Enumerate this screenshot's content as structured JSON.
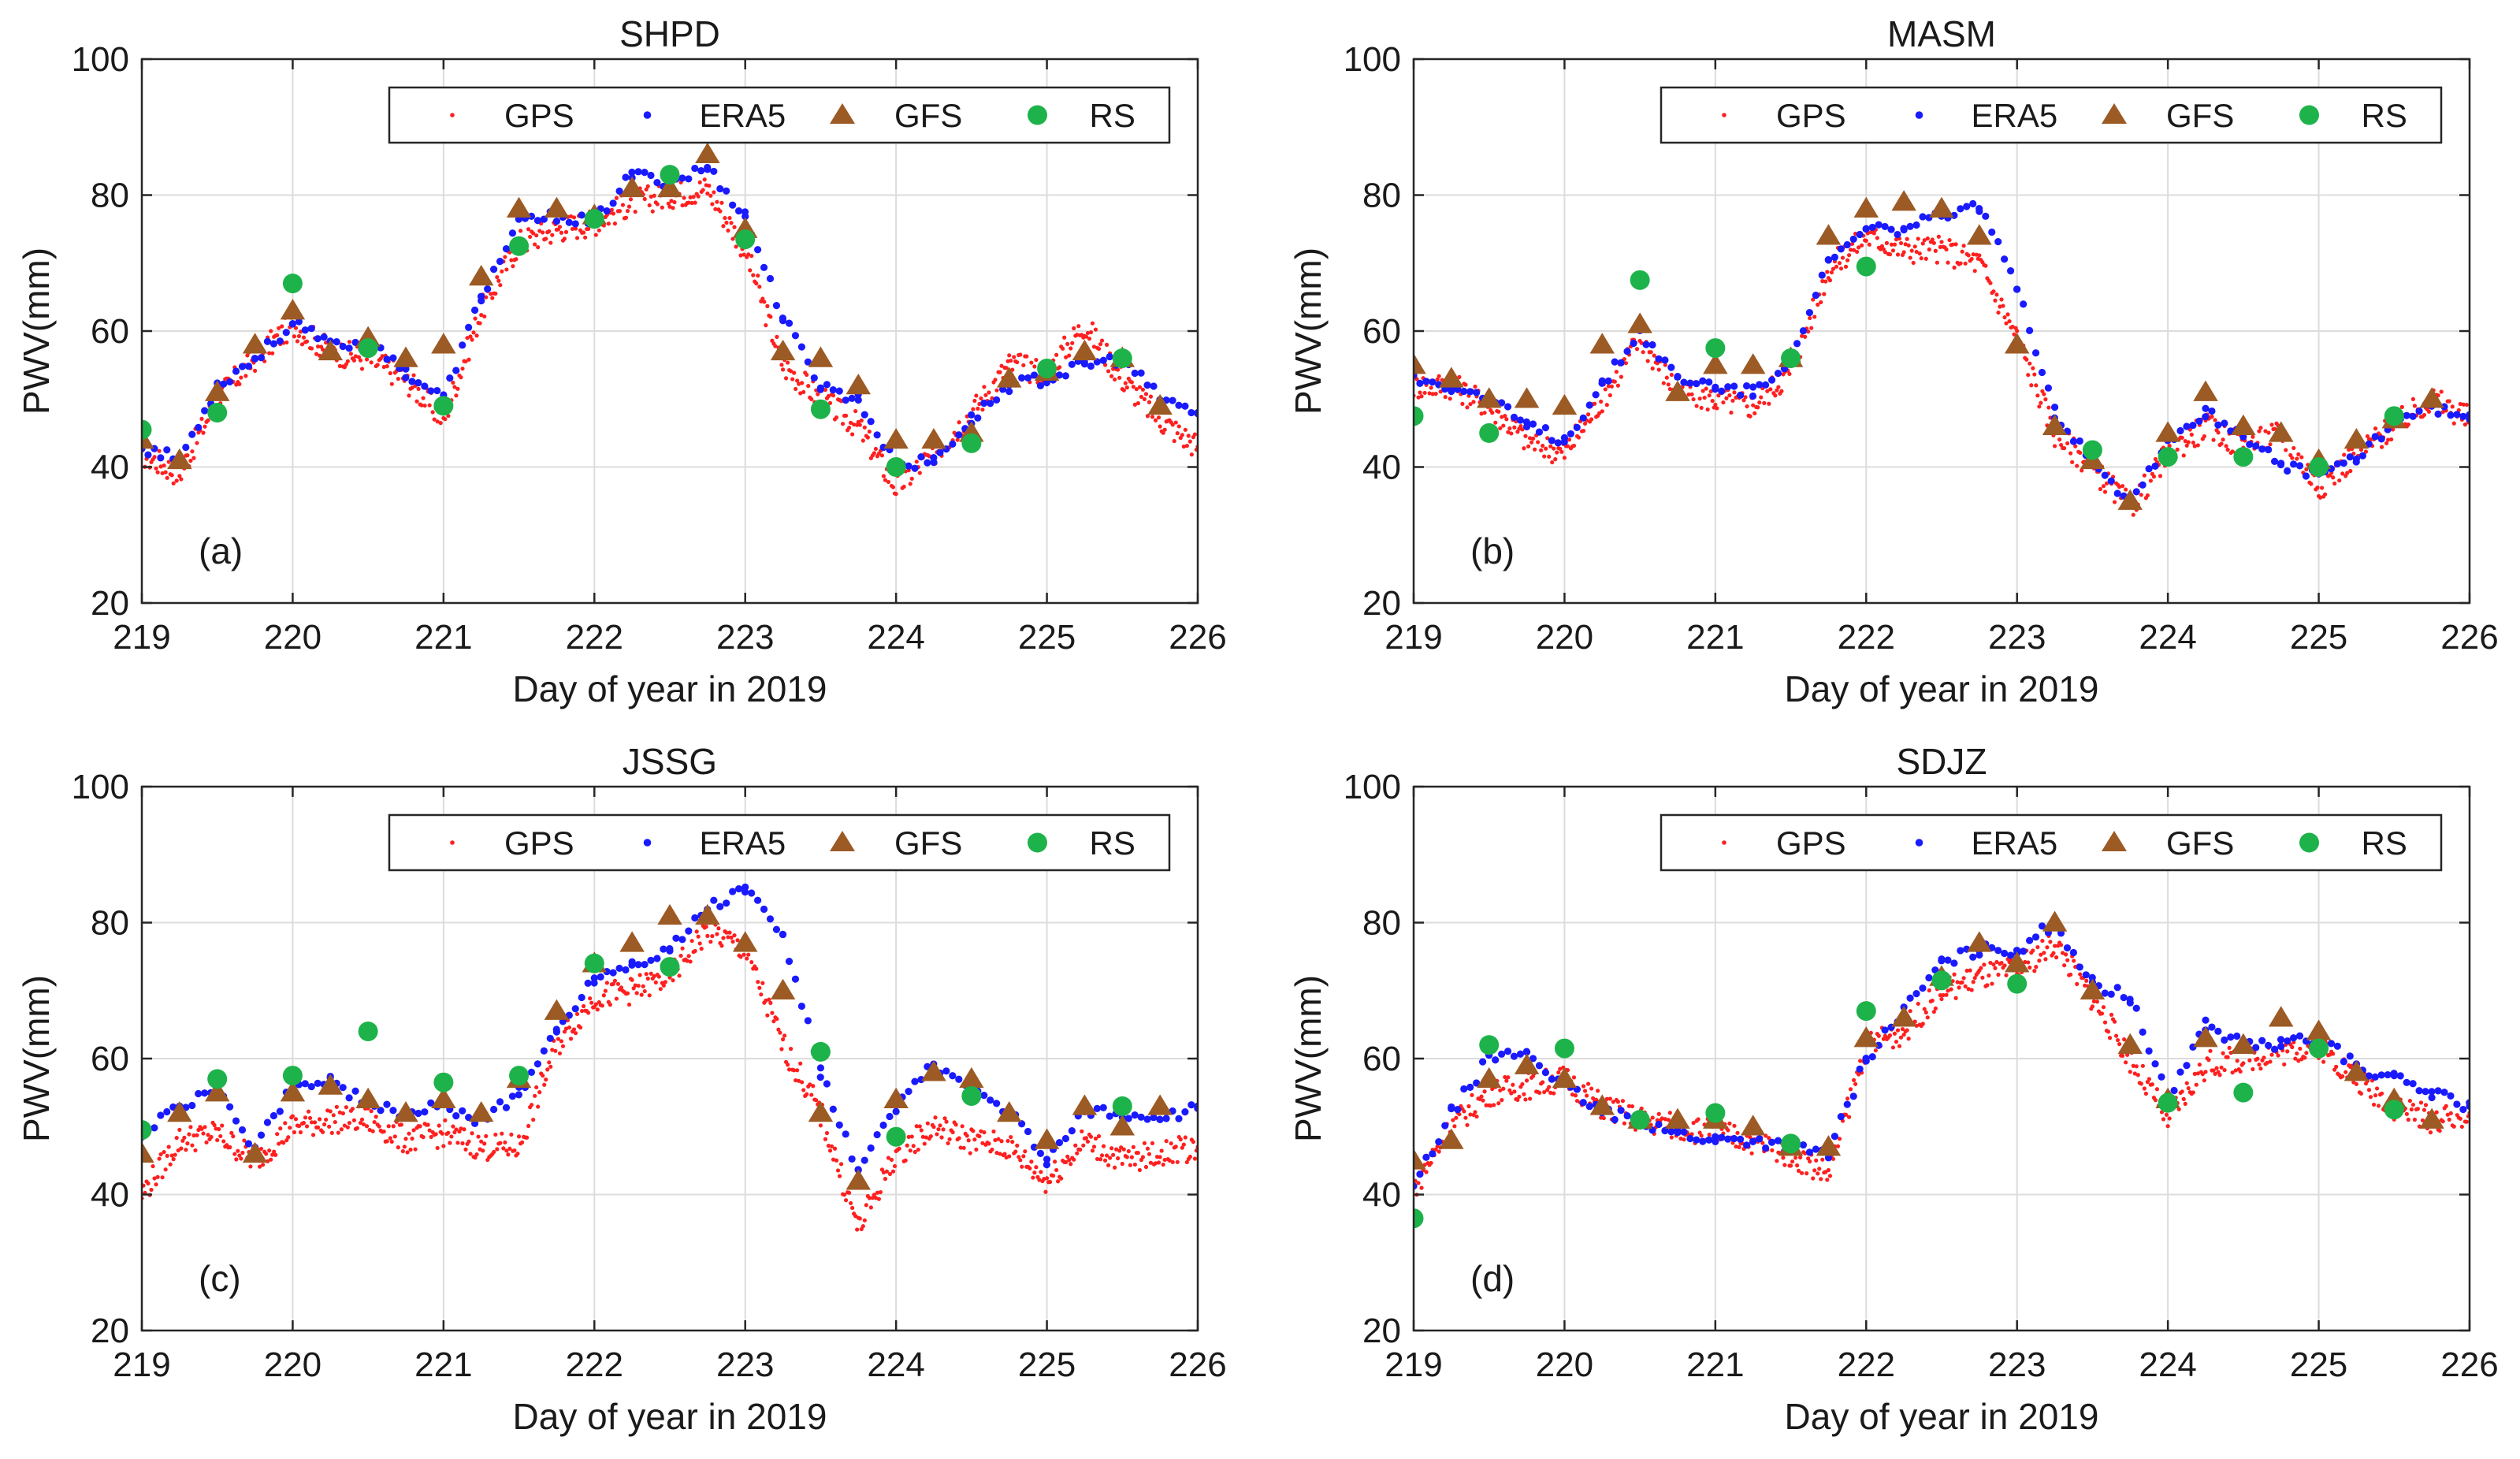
{
  "figure": {
    "shared_xlabel": "Day of year in 2019",
    "shared_ylabel": "PWV(mm)",
    "colors": {
      "GPS": "#ff1f1f",
      "ERA5": "#1a1aff",
      "GFS": "#9c5a24",
      "RS": "#1db34a"
    }
  },
  "chart_data": [
    {
      "type": "scatter",
      "title": "SHPD",
      "panel_label": "(a)",
      "xlabel": "Day of year in 2019",
      "ylabel": "PWV(mm)",
      "xlim": [
        219,
        226
      ],
      "ylim": [
        20,
        100
      ],
      "xticks": [
        219,
        220,
        221,
        222,
        223,
        224,
        225,
        226
      ],
      "yticks": [
        20,
        40,
        60,
        80,
        100
      ],
      "grid": true,
      "legend": {
        "placement": "top-right",
        "entries": [
          "GPS",
          "ERA5",
          "GFS",
          "RS"
        ]
      },
      "series": [
        {
          "name": "GPS",
          "marker": "small-dot",
          "x": [
            219.0,
            219.25,
            219.5,
            219.75,
            220.0,
            220.25,
            220.5,
            220.75,
            221.0,
            221.25,
            221.5,
            221.75,
            222.0,
            222.25,
            222.5,
            222.75,
            223.0,
            223.25,
            223.5,
            223.75,
            224.0,
            224.25,
            224.5,
            224.75,
            225.0,
            225.25,
            225.5,
            225.75,
            226.0
          ],
          "y": [
            42,
            39,
            50,
            56,
            61,
            57,
            56,
            53,
            47,
            63,
            73,
            75,
            76,
            79,
            80,
            81,
            72,
            55,
            50,
            46,
            37,
            42,
            48,
            55,
            54,
            61,
            53,
            47,
            43
          ]
        },
        {
          "name": "ERA5",
          "marker": "dot",
          "x": [
            219.0,
            219.25,
            219.5,
            219.75,
            220.0,
            220.25,
            220.5,
            220.75,
            221.0,
            221.25,
            221.5,
            221.75,
            222.0,
            222.25,
            222.5,
            222.75,
            223.0,
            223.25,
            223.5,
            223.75,
            224.0,
            224.25,
            224.5,
            224.75,
            225.0,
            225.25,
            225.5,
            225.75,
            226.0
          ],
          "y": [
            43,
            41,
            52,
            56,
            61,
            58,
            58,
            54,
            50,
            65,
            76,
            77,
            76,
            83,
            82,
            84,
            77,
            62,
            52,
            50,
            40,
            41,
            47,
            52,
            53,
            55,
            56,
            50,
            48
          ]
        },
        {
          "name": "GFS",
          "marker": "triangle",
          "x": [
            219.0,
            219.25,
            219.5,
            219.75,
            220.0,
            220.25,
            220.5,
            220.75,
            221.0,
            221.25,
            221.5,
            221.75,
            222.0,
            222.25,
            222.5,
            222.75,
            223.0,
            223.25,
            223.5,
            223.75,
            224.0,
            224.25,
            224.5,
            224.75,
            225.0,
            225.25,
            225.5,
            225.75
          ],
          "y": [
            44,
            41,
            51,
            58,
            63,
            57,
            59,
            56,
            58,
            68,
            78,
            78,
            77,
            81,
            81,
            86,
            75,
            57,
            56,
            52,
            44,
            44,
            45,
            53,
            54,
            57,
            56,
            49
          ]
        },
        {
          "name": "RS",
          "marker": "circle",
          "x": [
            219.0,
            219.5,
            220.0,
            220.5,
            221.0,
            221.5,
            222.0,
            222.5,
            223.0,
            223.5,
            224.0,
            224.5,
            225.0,
            225.5
          ],
          "y": [
            45.5,
            48,
            67,
            57.5,
            49,
            72.5,
            76.5,
            83,
            73.5,
            48.5,
            40,
            43.5,
            54.5,
            56
          ]
        }
      ]
    },
    {
      "type": "scatter",
      "title": "MASM",
      "panel_label": "(b)",
      "xlabel": "Day of year in 2019",
      "ylabel": "PWV(mm)",
      "xlim": [
        219,
        226
      ],
      "ylim": [
        20,
        100
      ],
      "xticks": [
        219,
        220,
        221,
        222,
        223,
        224,
        225,
        226
      ],
      "yticks": [
        20,
        40,
        60,
        80,
        100
      ],
      "grid": true,
      "legend": {
        "placement": "top-right",
        "entries": [
          "GPS",
          "ERA5",
          "GFS",
          "RS"
        ]
      },
      "series": [
        {
          "name": "GPS",
          "marker": "small-dot",
          "x": [
            219.0,
            219.25,
            219.5,
            219.75,
            220.0,
            220.25,
            220.5,
            220.75,
            221.0,
            221.25,
            221.5,
            221.75,
            222.0,
            222.25,
            222.5,
            222.75,
            223.0,
            223.25,
            223.5,
            223.75,
            224.0,
            224.25,
            224.5,
            224.75,
            225.0,
            225.25,
            225.5,
            225.75,
            226.0
          ],
          "y": [
            52,
            52,
            49,
            44,
            42,
            50,
            59,
            51,
            50,
            49,
            54,
            69,
            74,
            72,
            72,
            70,
            59,
            45,
            40,
            34,
            42,
            46,
            43,
            45,
            37,
            42,
            46,
            50,
            47
          ]
        },
        {
          "name": "ERA5",
          "marker": "dot",
          "x": [
            219.0,
            219.25,
            219.5,
            219.75,
            220.0,
            220.25,
            220.5,
            220.75,
            221.0,
            221.25,
            221.5,
            221.75,
            222.0,
            222.25,
            222.5,
            222.75,
            223.0,
            223.25,
            223.5,
            223.75,
            224.0,
            224.25,
            224.5,
            224.75,
            225.0,
            225.25,
            225.5,
            225.75,
            226.0
          ],
          "y": [
            53,
            52,
            50,
            46,
            44,
            52,
            60,
            53,
            52,
            51,
            56,
            70,
            75,
            75,
            77,
            78,
            67,
            48,
            41,
            35,
            44,
            48,
            45,
            40,
            39,
            41,
            47,
            49,
            47
          ]
        },
        {
          "name": "GFS",
          "marker": "triangle",
          "x": [
            219.0,
            219.25,
            219.5,
            219.75,
            220.0,
            220.25,
            220.5,
            220.75,
            221.0,
            221.25,
            221.5,
            221.75,
            222.0,
            222.25,
            222.5,
            222.75,
            223.0,
            223.25,
            223.5,
            223.75,
            224.0,
            224.25,
            224.5,
            224.75,
            225.0,
            225.25,
            225.5,
            225.75
          ],
          "y": [
            55,
            53,
            50,
            50,
            49,
            58,
            61,
            51,
            55,
            55,
            56,
            74,
            78,
            79,
            78,
            74,
            58,
            46,
            41,
            35,
            45,
            51,
            46,
            45,
            41,
            44,
            47,
            50
          ]
        },
        {
          "name": "RS",
          "marker": "circle",
          "x": [
            219.0,
            219.5,
            220.5,
            221.0,
            221.5,
            222.0,
            223.5,
            224.0,
            224.5,
            225.0,
            225.5
          ],
          "y": [
            47.5,
            45,
            67.5,
            57.5,
            56,
            69.5,
            42.5,
            41.5,
            41.5,
            40,
            47.5
          ]
        }
      ]
    },
    {
      "type": "scatter",
      "title": "JSSG",
      "panel_label": "(c)",
      "xlabel": "Day of year in 2019",
      "ylabel": "PWV(mm)",
      "xlim": [
        219,
        226
      ],
      "ylim": [
        20,
        100
      ],
      "xticks": [
        219,
        220,
        221,
        222,
        223,
        224,
        225,
        226
      ],
      "yticks": [
        20,
        40,
        60,
        80,
        100
      ],
      "grid": true,
      "legend": {
        "placement": "top-right",
        "entries": [
          "GPS",
          "ERA5",
          "GFS",
          "RS"
        ]
      },
      "series": [
        {
          "name": "GPS",
          "marker": "small-dot",
          "x": [
            219.0,
            219.25,
            219.5,
            219.75,
            220.0,
            220.25,
            220.5,
            220.75,
            221.0,
            221.25,
            221.5,
            221.75,
            222.0,
            222.25,
            222.5,
            222.75,
            223.0,
            223.25,
            223.5,
            223.75,
            224.0,
            224.25,
            224.5,
            224.75,
            225.0,
            225.25,
            225.5,
            225.75,
            226.0
          ],
          "y": [
            40,
            48,
            49,
            45,
            50,
            51,
            51,
            48,
            49,
            47,
            47,
            62,
            69,
            70,
            72,
            79,
            76,
            62,
            52,
            35,
            46,
            50,
            48,
            47,
            42,
            48,
            45,
            46,
            47
          ]
        },
        {
          "name": "ERA5",
          "marker": "dot",
          "x": [
            219.0,
            219.25,
            219.5,
            219.75,
            220.0,
            220.25,
            220.5,
            220.75,
            221.0,
            221.25,
            221.5,
            221.75,
            222.0,
            222.25,
            222.5,
            222.75,
            223.0,
            223.25,
            223.5,
            223.75,
            224.0,
            224.25,
            224.5,
            224.75,
            225.0,
            225.25,
            225.5,
            225.75,
            226.0
          ],
          "y": [
            49,
            53,
            55,
            47,
            56,
            57,
            53,
            52,
            53,
            51,
            55,
            64,
            72,
            74,
            76,
            82,
            85,
            78,
            58,
            43,
            53,
            59,
            55,
            52,
            45,
            52,
            52,
            51,
            53
          ]
        },
        {
          "name": "GFS",
          "marker": "triangle",
          "x": [
            219.0,
            219.25,
            219.5,
            219.75,
            220.0,
            220.25,
            220.5,
            220.75,
            221.0,
            221.25,
            221.5,
            221.75,
            222.0,
            222.25,
            222.5,
            222.75,
            223.0,
            223.25,
            223.5,
            223.75,
            224.0,
            224.25,
            224.5,
            224.75,
            225.0,
            225.25,
            225.5,
            225.75
          ],
          "y": [
            46,
            52,
            55,
            46,
            55,
            56,
            54,
            52,
            54,
            52,
            57,
            67,
            74,
            77,
            81,
            81,
            77,
            70,
            52,
            42,
            54,
            58,
            57,
            52,
            48,
            53,
            50,
            53
          ]
        },
        {
          "name": "RS",
          "marker": "circle",
          "x": [
            219.0,
            219.5,
            220.0,
            220.5,
            221.0,
            221.5,
            222.0,
            222.5,
            223.5,
            224.0,
            224.5,
            225.5
          ],
          "y": [
            49.5,
            57,
            57.5,
            64,
            56.5,
            57.5,
            74,
            73.5,
            61,
            48.5,
            54.5,
            53
          ]
        }
      ]
    },
    {
      "type": "scatter",
      "title": "SDJZ",
      "panel_label": "(d)",
      "xlabel": "Day of year in 2019",
      "ylabel": "PWV(mm)",
      "xlim": [
        219,
        226
      ],
      "ylim": [
        20,
        100
      ],
      "xticks": [
        219,
        220,
        221,
        222,
        223,
        224,
        225,
        226
      ],
      "yticks": [
        20,
        40,
        60,
        80,
        100
      ],
      "grid": true,
      "legend": {
        "placement": "top-right",
        "entries": [
          "GPS",
          "ERA5",
          "GFS",
          "RS"
        ]
      },
      "series": [
        {
          "name": "GPS",
          "marker": "small-dot",
          "x": [
            219.0,
            219.25,
            219.5,
            219.75,
            220.0,
            220.25,
            220.5,
            220.75,
            221.0,
            221.25,
            221.5,
            221.75,
            222.0,
            222.25,
            222.5,
            222.75,
            223.0,
            223.25,
            223.5,
            223.75,
            224.0,
            224.25,
            224.5,
            224.75,
            225.0,
            225.25,
            225.5,
            225.75,
            226.0
          ],
          "y": [
            41,
            50,
            55,
            56,
            57,
            53,
            51,
            50,
            49,
            48,
            46,
            43,
            62,
            64,
            70,
            72,
            73,
            77,
            69,
            60,
            51,
            59,
            60,
            61,
            62,
            57,
            53,
            51,
            52
          ]
        },
        {
          "name": "ERA5",
          "marker": "dot",
          "x": [
            219.0,
            219.25,
            219.5,
            219.75,
            220.0,
            220.25,
            220.5,
            220.75,
            221.0,
            221.25,
            221.5,
            221.75,
            222.0,
            222.25,
            222.5,
            222.75,
            223.0,
            223.25,
            223.5,
            223.75,
            224.0,
            224.25,
            224.5,
            224.75,
            225.0,
            225.25,
            225.5,
            225.75,
            226.0
          ],
          "y": [
            41,
            52,
            60,
            61,
            56,
            52,
            51,
            49,
            48,
            48,
            47,
            46,
            60,
            67,
            74,
            76,
            76,
            80,
            71,
            69,
            54,
            65,
            62,
            62,
            63,
            59,
            57,
            55,
            53
          ]
        },
        {
          "name": "GFS",
          "marker": "triangle",
          "x": [
            219.0,
            219.25,
            219.5,
            219.75,
            220.0,
            220.25,
            220.5,
            220.75,
            221.0,
            221.25,
            221.5,
            221.75,
            222.0,
            222.25,
            222.5,
            222.75,
            223.0,
            223.25,
            223.5,
            223.75,
            224.0,
            224.25,
            224.5,
            224.75,
            225.0,
            225.25,
            225.5,
            225.75
          ],
          "y": [
            45,
            48,
            57,
            59,
            57,
            53,
            51,
            51,
            51,
            50,
            47,
            47,
            63,
            66,
            72,
            77,
            74,
            80,
            70,
            62,
            54,
            63,
            62,
            66,
            64,
            58,
            54,
            51
          ]
        },
        {
          "name": "RS",
          "marker": "circle",
          "x": [
            219.0,
            219.5,
            220.0,
            220.5,
            221.0,
            221.5,
            222.0,
            222.5,
            223.0,
            224.0,
            224.5,
            225.0,
            225.5
          ],
          "y": [
            36.5,
            62,
            61.5,
            51,
            52,
            47.5,
            67,
            71.5,
            71,
            53.5,
            55,
            61.5,
            52.5
          ]
        }
      ]
    }
  ]
}
